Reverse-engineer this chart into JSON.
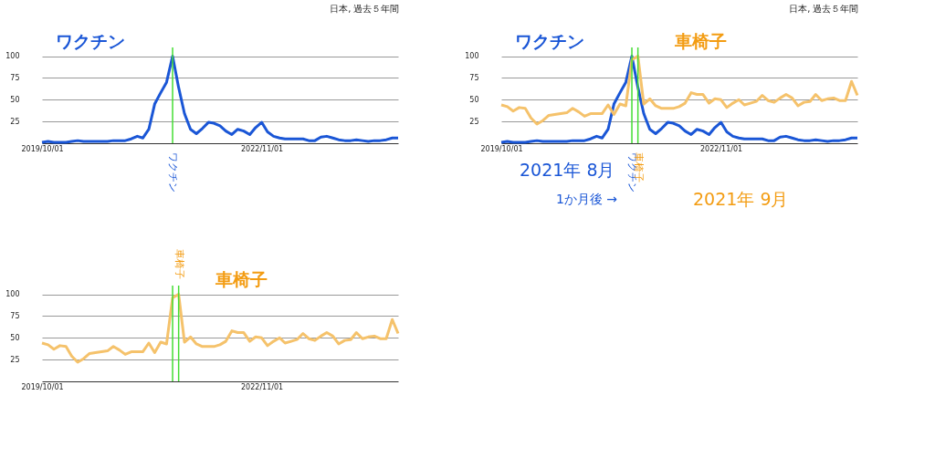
{
  "chart_data": [
    {
      "type": "line",
      "subtitle": "日本, 過去５年間",
      "x": [
        "2019-10",
        "2019-11",
        "2019-12",
        "2020-01",
        "2020-02",
        "2020-03",
        "2020-04",
        "2020-05",
        "2020-06",
        "2020-07",
        "2020-08",
        "2020-09",
        "2020-10",
        "2020-11",
        "2020-12",
        "2021-01",
        "2021-02",
        "2021-03",
        "2021-04",
        "2021-05",
        "2021-06",
        "2021-07",
        "2021-08",
        "2021-09",
        "2021-10",
        "2021-11",
        "2021-12",
        "2022-01",
        "2022-02",
        "2022-03",
        "2022-04",
        "2022-05",
        "2022-06",
        "2022-07",
        "2022-08",
        "2022-09",
        "2022-10",
        "2022-11",
        "2022-12",
        "2023-01",
        "2023-02",
        "2023-03",
        "2023-04",
        "2023-05",
        "2023-06",
        "2023-07",
        "2023-08",
        "2023-09",
        "2023-10",
        "2023-11",
        "2023-12",
        "2024-01",
        "2024-02",
        "2024-03",
        "2024-04",
        "2024-05",
        "2024-06",
        "2024-07",
        "2024-08",
        "2024-09",
        "2024-10"
      ],
      "series": [
        {
          "name": "ワクチン",
          "color": "#1a56d6",
          "values": [
            1,
            2,
            1,
            1,
            1,
            2,
            3,
            2,
            2,
            2,
            2,
            2,
            3,
            3,
            3,
            5,
            8,
            6,
            16,
            45,
            58,
            70,
            100,
            64,
            34,
            16,
            11,
            17,
            24,
            23,
            20,
            14,
            10,
            16,
            14,
            10,
            18,
            24,
            13,
            8,
            6,
            5,
            5,
            5,
            5,
            3,
            3,
            7,
            8,
            6,
            4,
            3,
            3,
            4,
            3,
            2,
            3,
            3,
            4,
            6,
            6
          ]
        }
      ],
      "xlim": [
        "2019-10",
        "2024-10"
      ],
      "ylim": [
        0,
        110
      ],
      "yticks": [
        25,
        50,
        75,
        100
      ],
      "xticks": [
        {
          "value": "2019-10",
          "label": "2019/10/01"
        },
        {
          "value": "2022-11",
          "label": "2022/11/01"
        }
      ],
      "grid": "y",
      "ref_lines": [
        {
          "axis": "x",
          "value": "2021-08",
          "label": "ワクチン",
          "color": "#44dd33"
        }
      ]
    },
    {
      "type": "line",
      "x": [
        "2019-10",
        "2019-11",
        "2019-12",
        "2020-01",
        "2020-02",
        "2020-03",
        "2020-04",
        "2020-05",
        "2020-06",
        "2020-07",
        "2020-08",
        "2020-09",
        "2020-10",
        "2020-11",
        "2020-12",
        "2021-01",
        "2021-02",
        "2021-03",
        "2021-04",
        "2021-05",
        "2021-06",
        "2021-07",
        "2021-08",
        "2021-09",
        "2021-10",
        "2021-11",
        "2021-12",
        "2022-01",
        "2022-02",
        "2022-03",
        "2022-04",
        "2022-05",
        "2022-06",
        "2022-07",
        "2022-08",
        "2022-09",
        "2022-10",
        "2022-11",
        "2022-12",
        "2023-01",
        "2023-02",
        "2023-03",
        "2023-04",
        "2023-05",
        "2023-06",
        "2023-07",
        "2023-08",
        "2023-09",
        "2023-10",
        "2023-11",
        "2023-12",
        "2024-01",
        "2024-02",
        "2024-03",
        "2024-04",
        "2024-05",
        "2024-06",
        "2024-07",
        "2024-08",
        "2024-09",
        "2024-10"
      ],
      "series": [
        {
          "name": "車椅子",
          "color": "#f5c26b",
          "values": [
            44,
            42,
            37,
            41,
            40,
            29,
            22,
            26,
            32,
            33,
            34,
            35,
            40,
            36,
            31,
            34,
            34,
            34,
            44,
            33,
            45,
            43,
            96,
            100,
            45,
            51,
            43,
            40,
            40,
            40,
            42,
            46,
            58,
            56,
            56,
            46,
            51,
            50,
            41,
            46,
            50,
            44,
            46,
            48,
            55,
            49,
            47,
            52,
            56,
            52,
            43,
            47,
            48,
            56,
            49,
            51,
            52,
            49,
            49,
            71,
            55
          ]
        }
      ],
      "xlim": [
        "2019-10",
        "2024-10"
      ],
      "ylim": [
        0,
        110
      ],
      "yticks": [
        25,
        50,
        75,
        100
      ],
      "xticks": [
        {
          "value": "2019-10",
          "label": "2019/10/01"
        },
        {
          "value": "2022-11",
          "label": "2022/11/01"
        }
      ],
      "grid": "y",
      "ref_lines": [
        {
          "axis": "x",
          "value": "2021-08",
          "color": "#44dd33"
        },
        {
          "axis": "x",
          "value": "2021-09",
          "label": "車椅子",
          "color": "#44dd33"
        }
      ]
    },
    {
      "type": "line",
      "subtitle": "日本, 過去５年間",
      "x": [
        "2019-10",
        "2019-11",
        "2019-12",
        "2020-01",
        "2020-02",
        "2020-03",
        "2020-04",
        "2020-05",
        "2020-06",
        "2020-07",
        "2020-08",
        "2020-09",
        "2020-10",
        "2020-11",
        "2020-12",
        "2021-01",
        "2021-02",
        "2021-03",
        "2021-04",
        "2021-05",
        "2021-06",
        "2021-07",
        "2021-08",
        "2021-09",
        "2021-10",
        "2021-11",
        "2021-12",
        "2022-01",
        "2022-02",
        "2022-03",
        "2022-04",
        "2022-05",
        "2022-06",
        "2022-07",
        "2022-08",
        "2022-09",
        "2022-10",
        "2022-11",
        "2022-12",
        "2023-01",
        "2023-02",
        "2023-03",
        "2023-04",
        "2023-05",
        "2023-06",
        "2023-07",
        "2023-08",
        "2023-09",
        "2023-10",
        "2023-11",
        "2023-12",
        "2024-01",
        "2024-02",
        "2024-03",
        "2024-04",
        "2024-05",
        "2024-06",
        "2024-07",
        "2024-08",
        "2024-09",
        "2024-10"
      ],
      "series": [
        {
          "name": "ワクチン",
          "color": "#1a56d6",
          "values": [
            1,
            2,
            1,
            1,
            1,
            2,
            3,
            2,
            2,
            2,
            2,
            2,
            3,
            3,
            3,
            5,
            8,
            6,
            16,
            45,
            58,
            70,
            100,
            64,
            34,
            16,
            11,
            17,
            24,
            23,
            20,
            14,
            10,
            16,
            14,
            10,
            18,
            24,
            13,
            8,
            6,
            5,
            5,
            5,
            5,
            3,
            3,
            7,
            8,
            6,
            4,
            3,
            3,
            4,
            3,
            2,
            3,
            3,
            4,
            6,
            6
          ]
        },
        {
          "name": "車椅子",
          "color": "#f5c26b",
          "values": [
            44,
            42,
            37,
            41,
            40,
            29,
            22,
            26,
            32,
            33,
            34,
            35,
            40,
            36,
            31,
            34,
            34,
            34,
            44,
            33,
            45,
            43,
            96,
            100,
            45,
            51,
            43,
            40,
            40,
            40,
            42,
            46,
            58,
            56,
            56,
            46,
            51,
            50,
            41,
            46,
            50,
            44,
            46,
            48,
            55,
            49,
            47,
            52,
            56,
            52,
            43,
            47,
            48,
            56,
            49,
            51,
            52,
            49,
            49,
            71,
            55
          ]
        }
      ],
      "xlim": [
        "2019-10",
        "2024-10"
      ],
      "ylim": [
        0,
        110
      ],
      "yticks": [
        25,
        50,
        75,
        100
      ],
      "xticks": [
        {
          "value": "2019-10",
          "label": "2019/10/01"
        },
        {
          "value": "2022-11",
          "label": "2022/11/01"
        }
      ],
      "grid": "y",
      "ref_lines": [
        {
          "axis": "x",
          "value": "2021-08",
          "label": "ワクチン",
          "color": "#44dd33"
        },
        {
          "axis": "x",
          "value": "2021-09",
          "label": "車椅子",
          "color": "#44dd33"
        }
      ],
      "annotations": [
        "2021年 8月",
        "1か月後 →",
        "2021年 9月"
      ]
    }
  ]
}
